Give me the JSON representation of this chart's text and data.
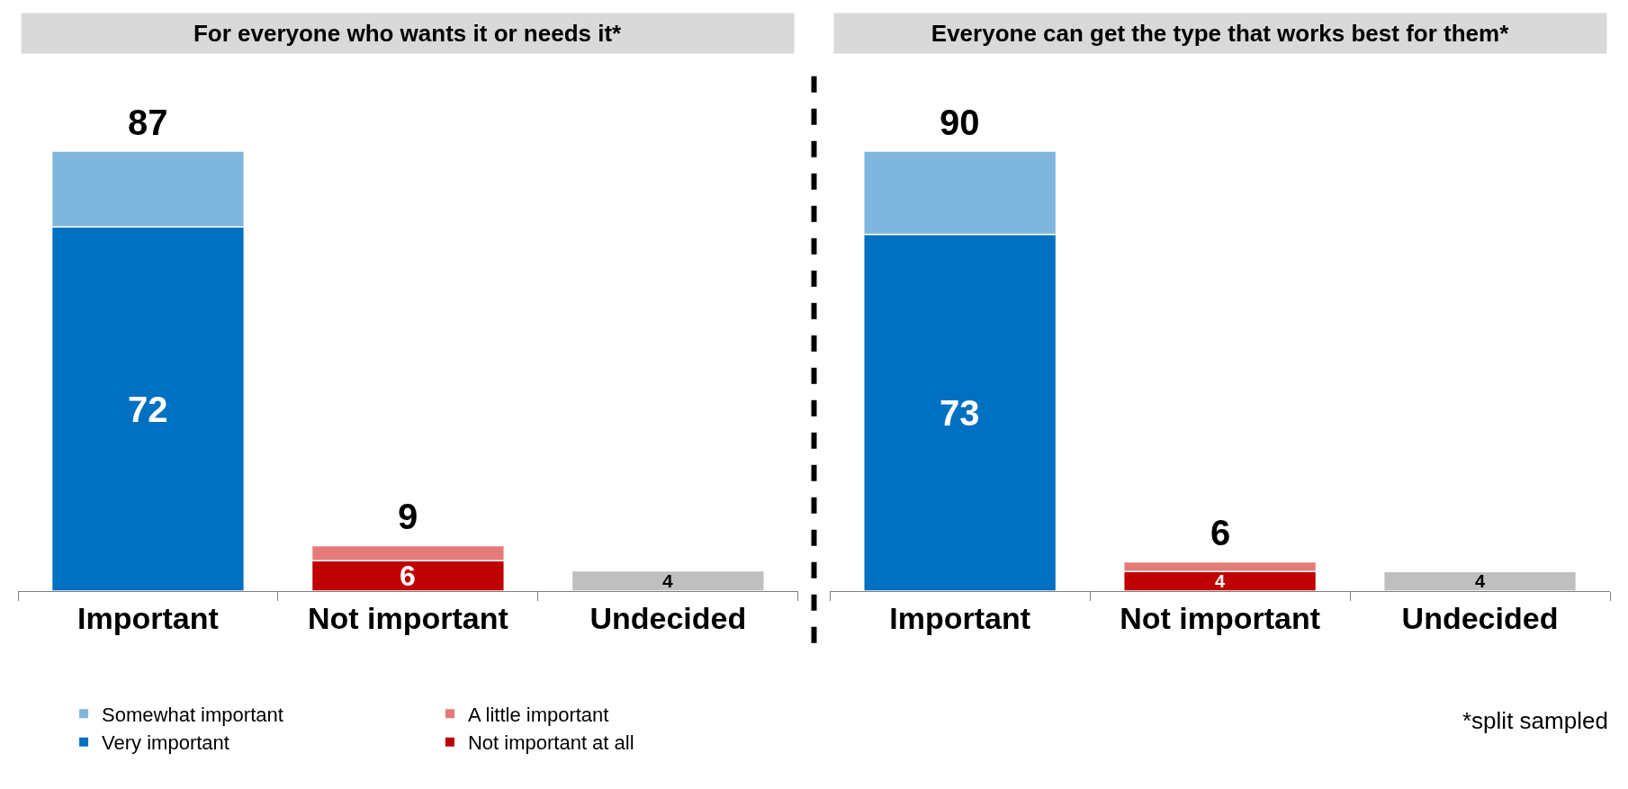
{
  "chart_data": [
    {
      "type": "bar",
      "stacked": true,
      "title": "For everyone who wants it or needs it*",
      "categories": [
        "Important",
        "Not important",
        "Undecided"
      ],
      "series": [
        {
          "name": "Very important",
          "color": "#0070c0",
          "values": [
            72,
            null,
            null
          ],
          "value_labels": [
            "72",
            null,
            null
          ]
        },
        {
          "name": "Somewhat important",
          "color": "#7fb6dd",
          "values": [
            15,
            null,
            null
          ]
        },
        {
          "name": "Not important at all",
          "color": "#c00000",
          "values": [
            null,
            6,
            null
          ],
          "value_labels": [
            null,
            "6",
            null
          ]
        },
        {
          "name": "A little important",
          "color": "#e57b78",
          "values": [
            null,
            3,
            null
          ]
        },
        {
          "color": "#bfbfbf",
          "values": [
            null,
            null,
            4
          ],
          "value_labels": [
            null,
            null,
            "4"
          ]
        }
      ],
      "totals": [
        "87",
        "9",
        null
      ],
      "legend": "bottom left"
    },
    {
      "type": "bar",
      "stacked": true,
      "title": "Everyone can get the type that works best for them*",
      "categories": [
        "Important",
        "Not important",
        "Undecided"
      ],
      "series": [
        {
          "name": "Very important",
          "color": "#0070c0",
          "values": [
            73,
            null,
            null
          ],
          "value_labels": [
            "73",
            null,
            null
          ]
        },
        {
          "name": "Somewhat important",
          "color": "#7fb6dd",
          "values": [
            17,
            null,
            null
          ]
        },
        {
          "name": "Not important at all",
          "color": "#c00000",
          "values": [
            null,
            4,
            null
          ],
          "value_labels": [
            null,
            "4",
            null
          ]
        },
        {
          "name": "A little important",
          "color": "#e57b78",
          "values": [
            null,
            2,
            null
          ]
        },
        {
          "color": "#bfbfbf",
          "values": [
            null,
            null,
            4
          ],
          "value_labels": [
            null,
            null,
            "4"
          ]
        }
      ],
      "totals": [
        "90",
        "6",
        null
      ],
      "annotations": [
        "*split sampled"
      ]
    }
  ]
}
